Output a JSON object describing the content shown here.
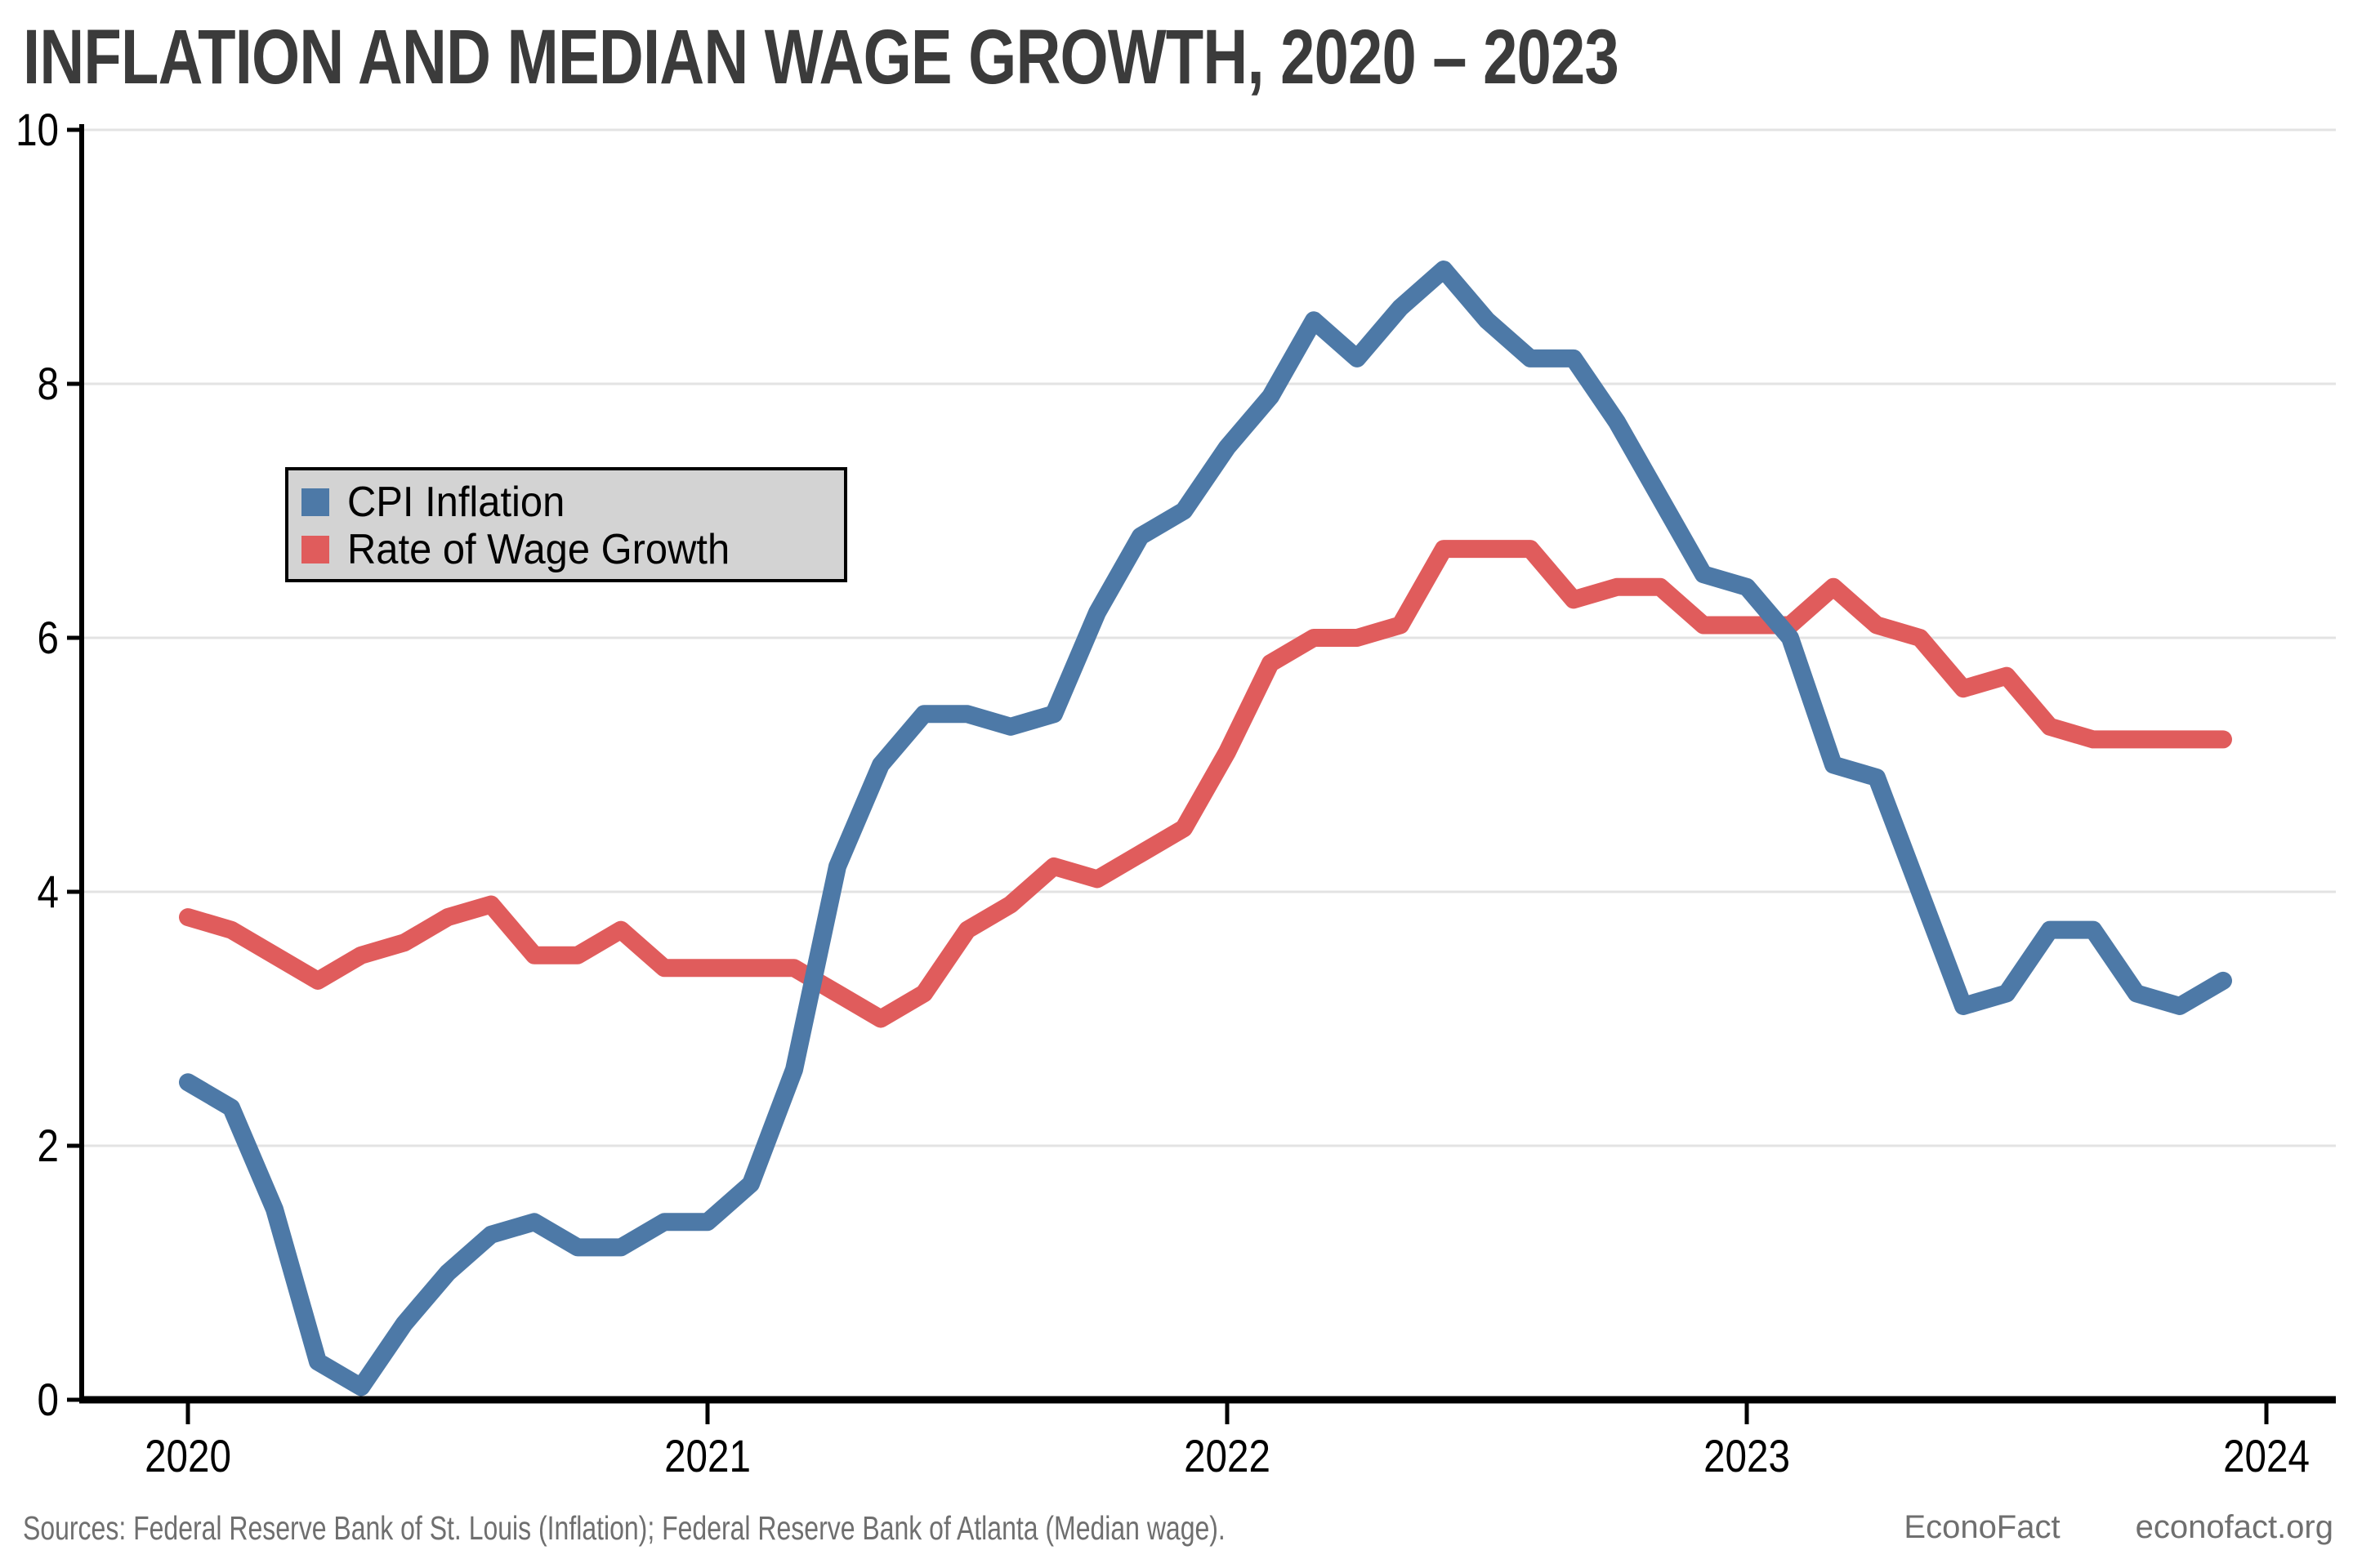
{
  "title": "INFLATION AND MEDIAN WAGE GROWTH, 2020 – 2023",
  "legend": {
    "items": [
      {
        "label": "CPI Inflation",
        "color": "#4d79a7"
      },
      {
        "label": "Rate of Wage Growth",
        "color": "#e05c5c"
      }
    ],
    "background": "#d3d3d3",
    "border_color": "#000000"
  },
  "footer": {
    "sources": "Sources: Federal Reserve Bank of St. Louis (Inflation); Federal Reserve Bank of Atlanta (Median wage).",
    "brand": "EconoFact",
    "site": "econofact.org"
  },
  "chart_data": {
    "type": "line",
    "title": "INFLATION AND MEDIAN WAGE GROWTH, 2020 – 2023",
    "x_start": "2020-01",
    "x_frequency": "monthly",
    "x_tick_labels": [
      "2020",
      "2021",
      "2022",
      "2023",
      "2024"
    ],
    "y_ticks": [
      0,
      2,
      4,
      6,
      8,
      10
    ],
    "ylim": [
      0,
      10
    ],
    "grid": true,
    "grid_color": "#e3e3e3",
    "axis_color": "#000000",
    "legend_position": "upper-left",
    "series": [
      {
        "name": "CPI Inflation",
        "color": "#4d79a7",
        "values": [
          2.5,
          2.3,
          1.5,
          0.3,
          0.1,
          0.6,
          1.0,
          1.3,
          1.4,
          1.2,
          1.2,
          1.4,
          1.4,
          1.7,
          2.6,
          4.2,
          5.0,
          5.4,
          5.4,
          5.3,
          5.4,
          6.2,
          6.8,
          7.0,
          7.5,
          7.9,
          8.5,
          8.2,
          8.6,
          8.9,
          8.5,
          8.2,
          8.2,
          7.7,
          7.1,
          6.5,
          6.4,
          6.0,
          5.0,
          4.9,
          4.0,
          3.1,
          3.2,
          3.7,
          3.7,
          3.2,
          3.1,
          3.3
        ]
      },
      {
        "name": "Rate of Wage Growth",
        "color": "#e05c5c",
        "values": [
          3.8,
          3.7,
          3.5,
          3.3,
          3.5,
          3.6,
          3.8,
          3.9,
          3.5,
          3.5,
          3.7,
          3.4,
          3.4,
          3.4,
          3.4,
          3.2,
          3.0,
          3.2,
          3.7,
          3.9,
          4.2,
          4.1,
          4.3,
          4.5,
          5.1,
          5.8,
          6.0,
          6.0,
          6.1,
          6.7,
          6.7,
          6.7,
          6.3,
          6.4,
          6.4,
          6.1,
          6.1,
          6.1,
          6.4,
          6.1,
          6.0,
          5.6,
          5.7,
          5.3,
          5.2,
          5.2,
          5.2,
          5.2
        ]
      }
    ]
  }
}
